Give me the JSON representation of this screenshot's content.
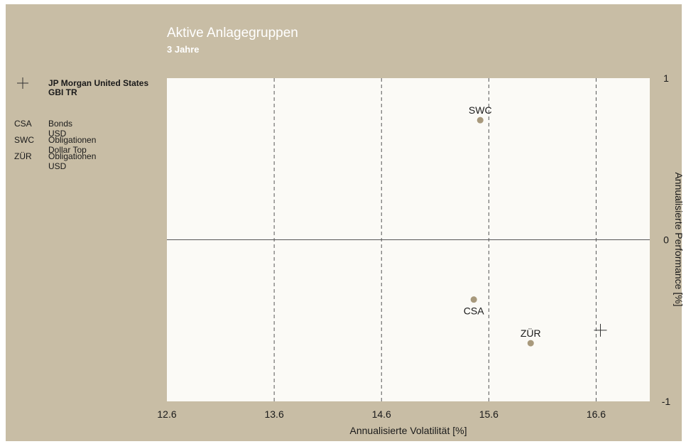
{
  "chart_data": {
    "type": "scatter",
    "title": "Aktive Anlagegruppen",
    "subtitle": "3 Jahre",
    "xlabel": "Annualisierte Volatilität [%]",
    "ylabel": "Annualisierte Performance [%]",
    "xlim": [
      12.6,
      17.1
    ],
    "ylim": [
      -1,
      1
    ],
    "x_ticks": [
      "12.6",
      "13.6",
      "14.6",
      "15.6",
      "16.6"
    ],
    "x_tick_values": [
      12.6,
      13.6,
      14.6,
      15.6,
      16.6
    ],
    "y_ticks": [
      "1",
      "0",
      "-1"
    ],
    "y_tick_values": [
      1,
      0,
      -1
    ],
    "y_axis_side": "right",
    "grid": "vertical dashed",
    "benchmark": {
      "label": "JP Morgan United States GBI TR",
      "x": 16.64,
      "y": -0.56,
      "marker": "cross"
    },
    "points": [
      {
        "label": "SWC",
        "name": "Obligationen Dollar Top",
        "x": 15.52,
        "y": 0.74
      },
      {
        "label": "CSA",
        "name": "Bonds USD",
        "x": 15.46,
        "y": -0.37
      },
      {
        "label": "ZÜR",
        "name": "Obligationen USD",
        "x": 15.99,
        "y": -0.64
      }
    ]
  },
  "legend": {
    "benchmark_label": "JP Morgan United States GBI TR",
    "items": [
      {
        "abbr": "CSA",
        "name": "Bonds USD"
      },
      {
        "abbr": "SWC",
        "name": "Obligationen Dollar Top"
      },
      {
        "abbr": "ZÜR",
        "name": "Obligationen USD"
      }
    ]
  },
  "colors": {
    "background": "#c8bda5",
    "plot_area": "#fbfaf6",
    "point": "#a8997c",
    "line": "#555555"
  }
}
